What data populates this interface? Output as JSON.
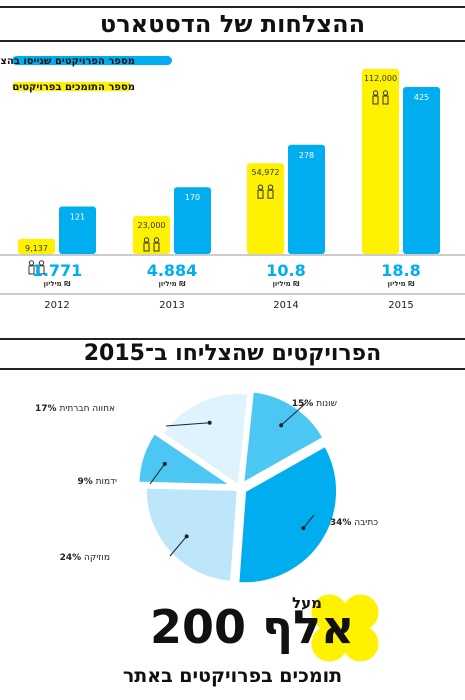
{
  "section1": {
    "title": "ההצלחות של הדסטארט"
  },
  "legend": {
    "projects_label": "מספר הפרויקטים שגייסו בהצלחה",
    "supporters_label": "מספר התומכים בפרויקטים",
    "projects_color": "#00aeef",
    "supporters_color": "#fff200"
  },
  "chart_data": [
    {
      "type": "bar",
      "categories": [
        "2012",
        "2013",
        "2014",
        "2015"
      ],
      "series": [
        {
          "name": "מספר התומכים בפרויקטים",
          "values": [
            9137,
            23000,
            54972,
            112000
          ],
          "labels": [
            "9,137",
            "23,000",
            "54,972",
            "112,000"
          ]
        },
        {
          "name": "מספר הפרויקטים שגייסו בהצלחה",
          "values": [
            121,
            170,
            278,
            425
          ]
        }
      ],
      "amounts": [
        "1.771",
        "4.884",
        "10.8",
        "18.8"
      ],
      "amount_unit": "מיליון ₪",
      "icon": "people-icon"
    },
    {
      "type": "pie",
      "title": "הפרויקטים שהצליחו ב־2015",
      "slices": [
        {
          "label": "שונות",
          "value": 15,
          "display": "15%",
          "color": "#4cc6f2"
        },
        {
          "label": "כתיבה",
          "value": 34,
          "display": "34%",
          "color": "#00aeef"
        },
        {
          "label": "מוזיקה",
          "value": 24,
          "display": "24%",
          "color": "#bde6fa"
        },
        {
          "label": "ידמות",
          "value": 9,
          "display": "9%",
          "color": "#4cc6f2"
        },
        {
          "label": "אחווה חברתית",
          "value": 17,
          "display": "17%",
          "color": "#def3fd"
        }
      ]
    }
  ],
  "bottom": {
    "prefix": "מעל",
    "number": "200",
    "unit": "אלף",
    "subtitle": "תומכים בפרויקטים באתר",
    "accent": "#fff200"
  }
}
